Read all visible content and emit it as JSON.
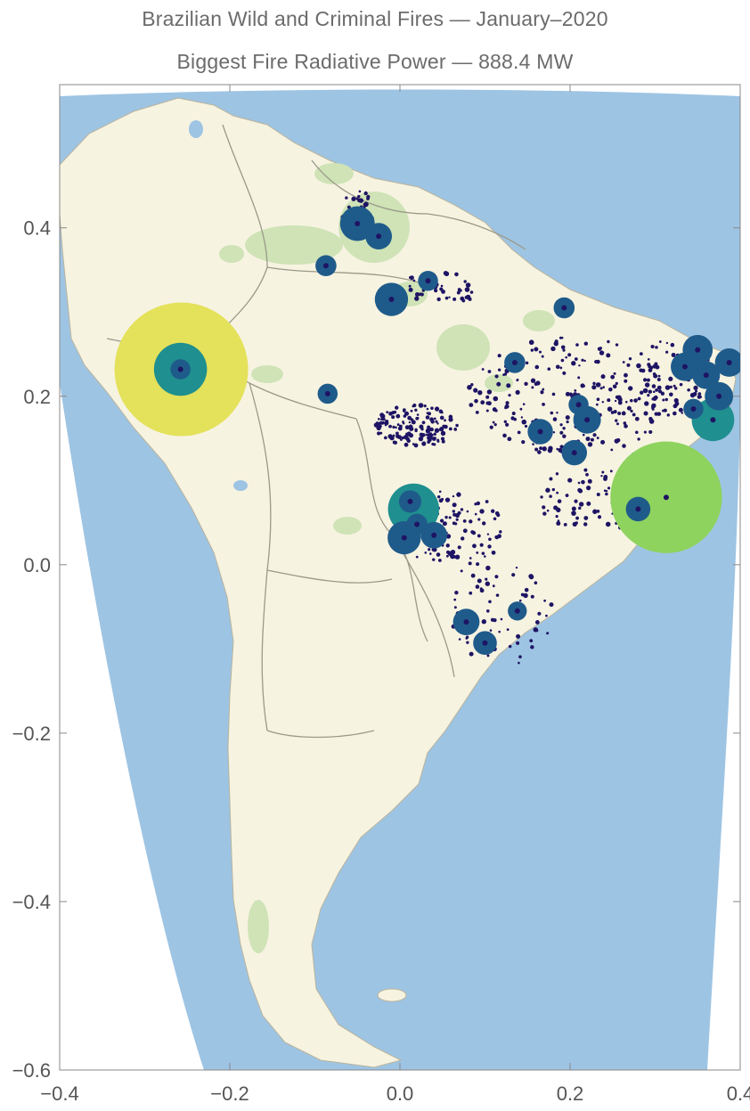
{
  "title": "Brazilian Wild and Criminal Fires — January–2020",
  "subtitle": "Biggest Fire Radiative Power — 888.4 MW",
  "colors": {
    "ocean": "#9ec4e3",
    "land": "#f7f3e1",
    "forest": "#cfe3b6",
    "border": "#9a9a8a",
    "frame": "#888888",
    "fire_small": "#1e1464",
    "fire_mid": "#1f5b8a",
    "fire_teal": "#1f8f8f",
    "fire_green": "#8ed35e",
    "fire_yellow": "#e4e15b"
  },
  "chart_data": {
    "type": "scatter",
    "xlim": [
      -0.4,
      0.4
    ],
    "ylim": [
      -0.6,
      0.57
    ],
    "x_ticks": [
      -0.4,
      -0.2,
      0.0,
      0.2,
      0.4
    ],
    "x_tick_labels": [
      "−0.4",
      "−0.2",
      "0.0",
      "0.2",
      "0.4"
    ],
    "y_ticks": [
      0.4,
      0.2,
      0.0,
      -0.2,
      -0.4,
      -0.6
    ],
    "y_tick_labels": [
      "0.4",
      "0.2",
      "0.0",
      "−0.2",
      "−0.4",
      "−0.6"
    ],
    "grid": false,
    "series": [
      {
        "values": [
          {
            "x": -0.257,
            "y": 0.232,
            "size": 888.4,
            "color": "fire_yellow"
          },
          {
            "x": 0.313,
            "y": 0.08,
            "size": 620,
            "color": "fire_green"
          },
          {
            "x": -0.258,
            "y": 0.232,
            "size": 140,
            "color": "fire_teal"
          },
          {
            "x": 0.016,
            "y": 0.066,
            "size": 130,
            "color": "fire_teal"
          },
          {
            "x": 0.368,
            "y": 0.172,
            "size": 90,
            "color": "fire_teal"
          },
          {
            "x": -0.05,
            "y": 0.405,
            "size": 60,
            "color": "fire_mid"
          },
          {
            "x": -0.01,
            "y": 0.315,
            "size": 55,
            "color": "fire_mid"
          },
          {
            "x": 0.005,
            "y": 0.032,
            "size": 55,
            "color": "fire_mid"
          },
          {
            "x": 0.35,
            "y": 0.255,
            "size": 45,
            "color": "fire_mid"
          },
          {
            "x": 0.387,
            "y": 0.24,
            "size": 40,
            "color": "fire_mid"
          },
          {
            "x": 0.375,
            "y": 0.2,
            "size": 40,
            "color": "fire_mid"
          },
          {
            "x": 0.335,
            "y": 0.235,
            "size": 40,
            "color": "fire_mid"
          },
          {
            "x": 0.36,
            "y": 0.225,
            "size": 38,
            "color": "fire_mid"
          },
          {
            "x": 0.22,
            "y": 0.172,
            "size": 38,
            "color": "fire_mid"
          },
          {
            "x": -0.025,
            "y": 0.39,
            "size": 35,
            "color": "fire_mid"
          },
          {
            "x": 0.04,
            "y": 0.035,
            "size": 35,
            "color": "fire_mid"
          },
          {
            "x": 0.078,
            "y": -0.068,
            "size": 35,
            "color": "fire_mid"
          },
          {
            "x": 0.165,
            "y": 0.158,
            "size": 32,
            "color": "fire_mid"
          },
          {
            "x": 0.205,
            "y": 0.133,
            "size": 32,
            "color": "fire_mid"
          },
          {
            "x": 0.28,
            "y": 0.066,
            "size": 30,
            "color": "fire_mid"
          },
          {
            "x": 0.1,
            "y": -0.093,
            "size": 28,
            "color": "fire_mid"
          },
          {
            "x": 0.135,
            "y": 0.24,
            "size": 22,
            "color": "fire_mid"
          },
          {
            "x": 0.193,
            "y": 0.305,
            "size": 22,
            "color": "fire_mid"
          },
          {
            "x": 0.033,
            "y": 0.337,
            "size": 20,
            "color": "fire_mid"
          },
          {
            "x": -0.087,
            "y": 0.355,
            "size": 22,
            "color": "fire_mid"
          },
          {
            "x": -0.085,
            "y": 0.203,
            "size": 20,
            "color": "fire_mid"
          },
          {
            "x": 0.21,
            "y": 0.19,
            "size": 20,
            "color": "fire_mid"
          },
          {
            "x": 0.345,
            "y": 0.185,
            "size": 20,
            "color": "fire_mid"
          },
          {
            "x": 0.138,
            "y": -0.055,
            "size": 18,
            "color": "fire_mid"
          },
          {
            "x": 0.012,
            "y": 0.075,
            "size": 25,
            "color": "fire_mid"
          },
          {
            "x": 0.02,
            "y": 0.048,
            "size": 22,
            "color": "fire_mid"
          },
          {
            "x": -0.258,
            "y": 0.232,
            "size": 20,
            "color": "fire_mid"
          }
        ]
      }
    ]
  }
}
